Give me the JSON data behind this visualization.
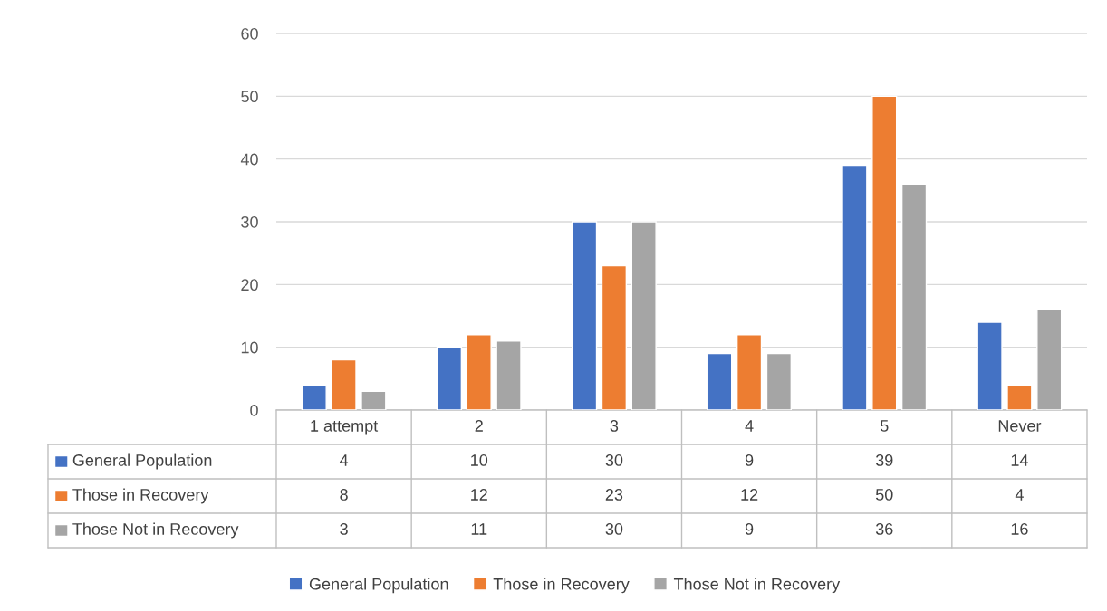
{
  "chart_data": {
    "type": "bar",
    "categories": [
      "1 attempt",
      "2",
      "3",
      "4",
      "5",
      "Never"
    ],
    "series": [
      {
        "name": "General Population",
        "color": "#4472c4",
        "values": [
          4,
          10,
          30,
          9,
          39,
          14
        ]
      },
      {
        "name": "Those in Recovery",
        "color": "#ed7d31",
        "values": [
          8,
          12,
          23,
          12,
          50,
          4
        ]
      },
      {
        "name": "Those Not in Recovery",
        "color": "#a5a5a5",
        "values": [
          3,
          11,
          30,
          9,
          36,
          16
        ]
      }
    ],
    "ylim": [
      0,
      60
    ],
    "yticks": [
      0,
      10,
      20,
      30,
      40,
      50,
      60
    ],
    "grid": "y",
    "legend": "bottom",
    "data_labels": true
  }
}
